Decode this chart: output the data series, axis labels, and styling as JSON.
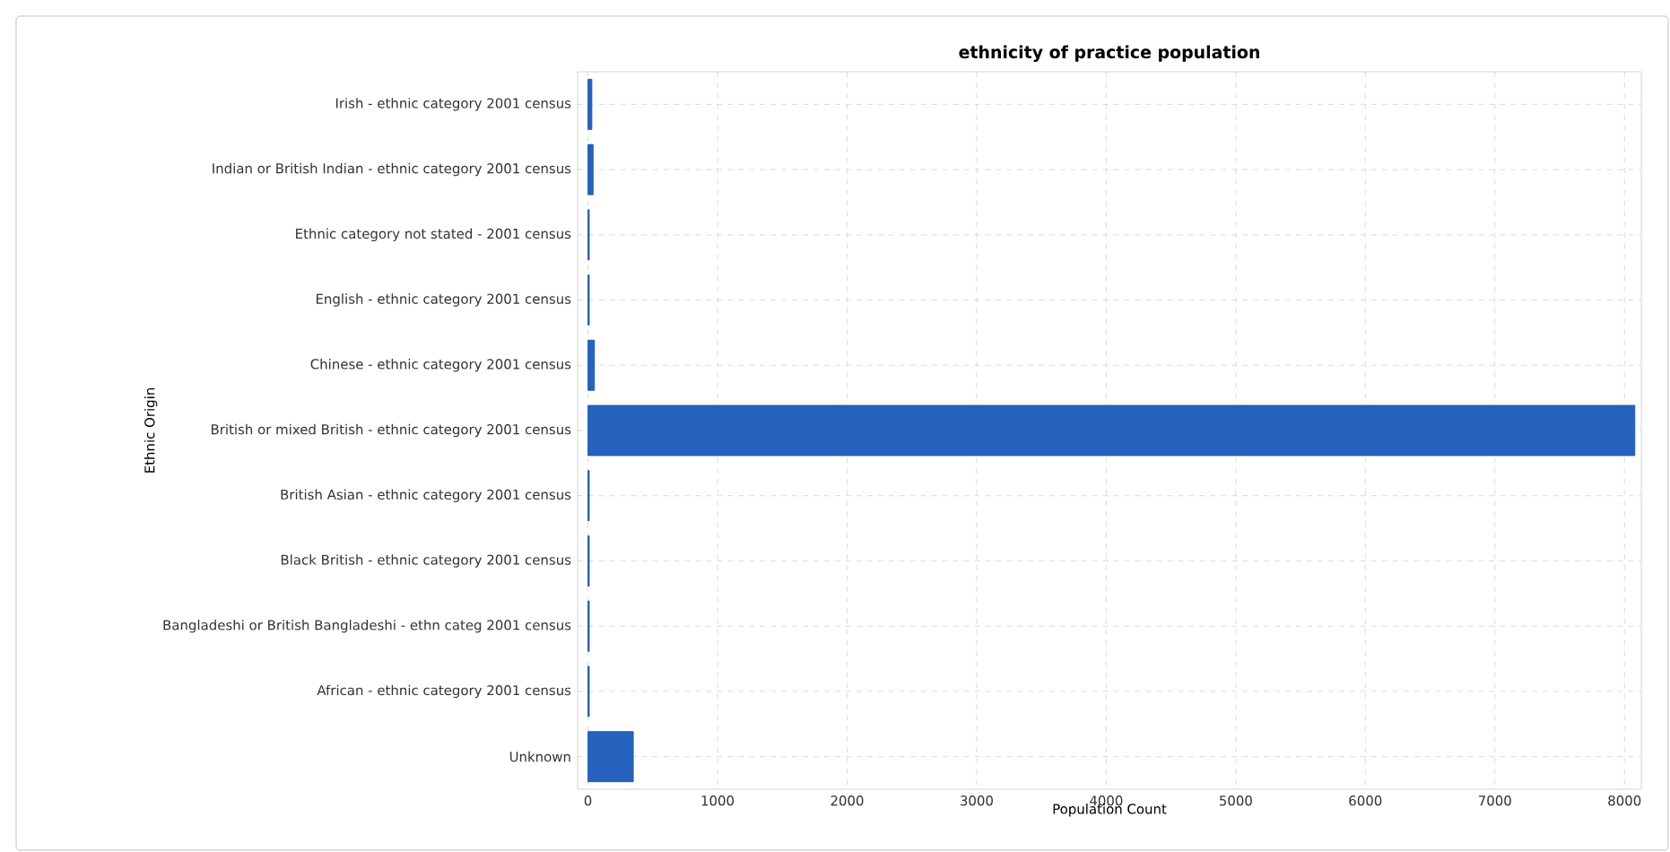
{
  "chart_data": {
    "type": "bar",
    "orientation": "horizontal",
    "title": "ethnicity of practice population",
    "xlabel": "Population Count",
    "ylabel": "Ethnic Origin",
    "categories": [
      "Irish - ethnic category 2001 census",
      "Indian or British Indian - ethnic category 2001 census",
      "Ethnic category not stated - 2001 census",
      "English - ethnic category 2001 census",
      "Chinese - ethnic category 2001 census",
      "British or mixed British - ethnic category 2001 census",
      "British Asian - ethnic category 2001 census",
      "Black British - ethnic category 2001 census",
      "Bangladeshi or British Bangladeshi - ethn categ 2001 census",
      "African - ethnic category 2001 census",
      "Unknown"
    ],
    "values": [
      30,
      40,
      10,
      10,
      50,
      8080,
      10,
      10,
      10,
      10,
      350
    ],
    "color": "#2563be",
    "xlim": [
      -80,
      8130
    ],
    "xticks": [
      0,
      1000,
      2000,
      3000,
      4000,
      5000,
      6000,
      7000,
      8000
    ],
    "grid": true
  }
}
